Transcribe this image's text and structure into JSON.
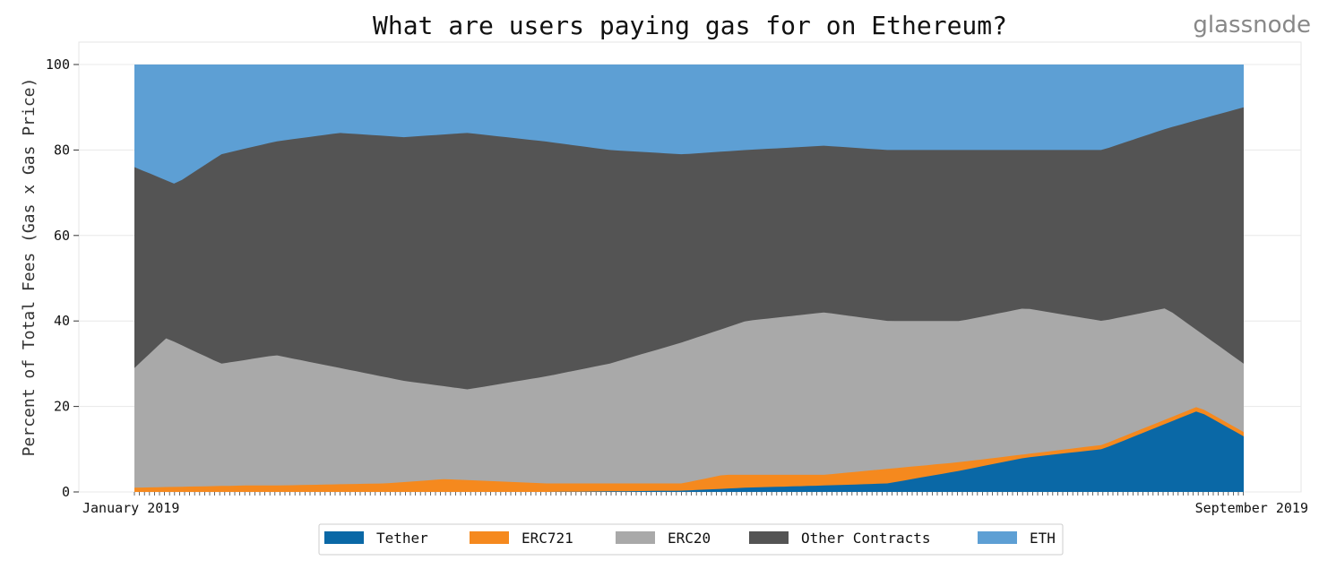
{
  "brand": "glassnode",
  "chart_data": {
    "type": "area",
    "title": "What are users paying gas for on Ethereum?",
    "xlabel": "",
    "ylabel": "Percent of Total Fees (Gas x Gas Price)",
    "ylim": [
      0,
      100
    ],
    "yticks": [
      0,
      20,
      40,
      60,
      80,
      100
    ],
    "x_tick_labels": [
      "January 2019",
      "September 2019"
    ],
    "x_start": "2019-01-01",
    "x_end": "2019-09-01",
    "stacking_order": [
      "Tether",
      "ERC721",
      "ERC20",
      "Other Contracts",
      "ETH"
    ],
    "legend_position": "bottom",
    "grid": true,
    "colors": {
      "Tether": "#0a68a6",
      "ERC721": "#f5891e",
      "ERC20": "#a9a9a9",
      "Other Contracts": "#545454",
      "ETH": "#5d9fd4"
    },
    "series": [
      {
        "name": "Tether",
        "type": "cumulative_top",
        "x": [
          "2019-01-01",
          "2019-02-01",
          "2019-03-01",
          "2019-04-01",
          "2019-05-01",
          "2019-05-15",
          "2019-06-01",
          "2019-06-15",
          "2019-07-01",
          "2019-07-15",
          "2019-08-01",
          "2019-08-15",
          "2019-08-22",
          "2019-09-01"
        ],
        "values": [
          0,
          0,
          0,
          0,
          0.3,
          1,
          1.5,
          2,
          5,
          8,
          10,
          16,
          19,
          13
        ]
      },
      {
        "name": "ERC721",
        "type": "cumulative_top",
        "x": [
          "2019-01-01",
          "2019-01-25",
          "2019-02-01",
          "2019-02-25",
          "2019-03-10",
          "2019-04-01",
          "2019-05-01",
          "2019-05-10",
          "2019-06-01",
          "2019-07-01",
          "2019-08-01",
          "2019-08-22",
          "2019-09-01"
        ],
        "values": [
          1,
          1.5,
          1.5,
          2,
          3,
          2,
          2,
          4,
          4,
          7,
          11,
          20,
          14
        ]
      },
      {
        "name": "ERC20",
        "type": "cumulative_top",
        "x": [
          "2019-01-01",
          "2019-01-08",
          "2019-01-20",
          "2019-02-01",
          "2019-02-15",
          "2019-03-01",
          "2019-03-15",
          "2019-04-01",
          "2019-04-15",
          "2019-05-01",
          "2019-05-15",
          "2019-06-01",
          "2019-06-15",
          "2019-07-01",
          "2019-07-15",
          "2019-08-01",
          "2019-08-15",
          "2019-09-01"
        ],
        "values": [
          29,
          36,
          30,
          32,
          29,
          26,
          24,
          27,
          30,
          35,
          40,
          42,
          40,
          40,
          43,
          40,
          43,
          30
        ]
      },
      {
        "name": "Other Contracts",
        "type": "cumulative_top",
        "x": [
          "2019-01-01",
          "2019-01-10",
          "2019-01-20",
          "2019-02-01",
          "2019-02-15",
          "2019-03-01",
          "2019-03-15",
          "2019-04-01",
          "2019-04-15",
          "2019-05-01",
          "2019-05-15",
          "2019-06-01",
          "2019-06-15",
          "2019-07-01",
          "2019-07-15",
          "2019-08-01",
          "2019-08-15",
          "2019-09-01"
        ],
        "values": [
          76,
          72,
          79,
          82,
          84,
          83,
          84,
          82,
          80,
          79,
          80,
          81,
          80,
          80,
          80,
          80,
          85,
          90
        ]
      },
      {
        "name": "ETH",
        "type": "cumulative_top",
        "x": [
          "2019-01-01",
          "2019-09-01"
        ],
        "values": [
          100,
          100
        ]
      }
    ]
  }
}
